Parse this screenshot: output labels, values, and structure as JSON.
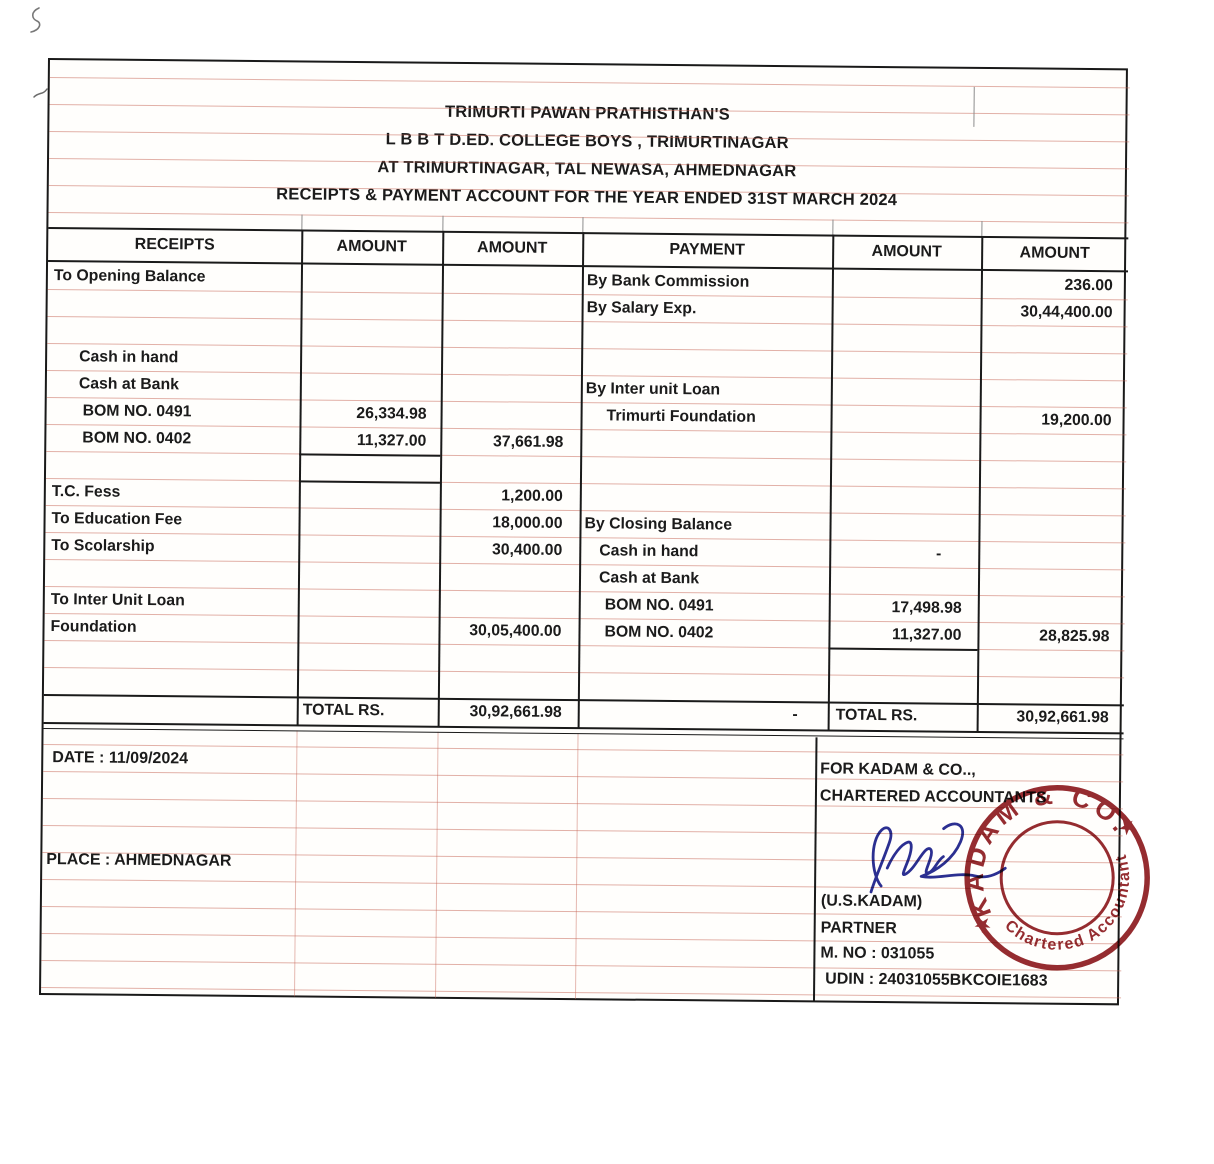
{
  "doc": {
    "title_lines": [
      "TRIMURTI PAWAN PRATHISTHAN'S",
      "L B B T D.ED. COLLEGE BOYS , TRIMURTINAGAR",
      "AT TRIMURTINAGAR, TAL NEWASA, AHMEDNAGAR",
      "RECEIPTS & PAYMENT ACCOUNT FOR THE YEAR ENDED 31ST MARCH 2024"
    ]
  },
  "table": {
    "column_headers": [
      "RECEIPTS",
      "AMOUNT",
      "AMOUNT",
      "PAYMENT",
      "AMOUNT",
      "AMOUNT"
    ],
    "rows": [
      {
        "r": "To Opening Balance",
        "ri": 0,
        "ra1": "",
        "ra2": "",
        "p": "By Bank Commission",
        "pi": 0,
        "pa1": "",
        "pa2": "236.00"
      },
      {
        "r": "",
        "ri": 0,
        "ra1": "",
        "ra2": "",
        "p": "By Salary Exp.",
        "pi": 0,
        "pa1": "",
        "pa2": "30,44,400.00"
      },
      {
        "r": "",
        "ri": 0,
        "ra1": "",
        "ra2": "",
        "p": "",
        "pi": 0,
        "pa1": "",
        "pa2": ""
      },
      {
        "r": "Cash in hand",
        "ri": 1,
        "ra1": "",
        "ra2": "",
        "p": "",
        "pi": 0,
        "pa1": "",
        "pa2": ""
      },
      {
        "r": "Cash at Bank",
        "ri": 1,
        "ra1": "",
        "ra2": "",
        "p": "By Inter unit Loan",
        "pi": 0,
        "pa1": "",
        "pa2": ""
      },
      {
        "r": "BOM NO. 0491",
        "ri": 2,
        "ra1": "26,334.98",
        "ra2": "",
        "p": "Trimurti Foundation",
        "pi": 2,
        "pa1": "",
        "pa2": "19,200.00"
      },
      {
        "r": "BOM NO. 0402",
        "ri": 2,
        "ra1": "11,327.00",
        "ra2": "37,661.98",
        "p": "",
        "pi": 0,
        "pa1": "",
        "pa2": "",
        "box_r": true
      },
      {
        "r": "",
        "ri": 0,
        "ra1": "",
        "ra2": "",
        "p": "",
        "pi": 0,
        "pa1": "",
        "pa2": "",
        "box_r": true
      },
      {
        "r": "T.C. Fess",
        "ri": 0,
        "ra1": "",
        "ra2": "1,200.00",
        "p": "",
        "pi": 0,
        "pa1": "",
        "pa2": ""
      },
      {
        "r": "To Education Fee",
        "ri": 0,
        "ra1": "",
        "ra2": "18,000.00",
        "p": "By Closing Balance",
        "pi": 0,
        "pa1": "",
        "pa2": ""
      },
      {
        "r": "To Scolarship",
        "ri": 0,
        "ra1": "",
        "ra2": "30,400.00",
        "p": "Cash in hand",
        "pi": 1,
        "pa1": "-",
        "pa2": ""
      },
      {
        "r": "",
        "ri": 0,
        "ra1": "",
        "ra2": "",
        "p": "Cash at Bank",
        "pi": 1,
        "pa1": "",
        "pa2": ""
      },
      {
        "r": "To Inter Unit Loan",
        "ri": 0,
        "ra1": "",
        "ra2": "",
        "p": "BOM NO. 0491",
        "pi": 2,
        "pa1": "17,498.98",
        "pa2": ""
      },
      {
        "r": "Foundation",
        "ri": 0,
        "ra1": "",
        "ra2": "30,05,400.00",
        "p": "BOM NO. 0402",
        "pi": 2,
        "pa1": "11,327.00",
        "pa2": "28,825.98",
        "box_p": true
      },
      {
        "r": "",
        "ri": 0,
        "ra1": "",
        "ra2": "",
        "p": "",
        "pi": 0,
        "pa1": "",
        "pa2": ""
      },
      {
        "r": "",
        "ri": 0,
        "ra1": "",
        "ra2": "",
        "p": "",
        "pi": 0,
        "pa1": "",
        "pa2": ""
      }
    ],
    "totals": {
      "receipts_label": "TOTAL RS.",
      "receipts_amount": "30,92,661.98",
      "payment_dash": "-",
      "payments_label": "TOTAL RS.",
      "payments_amount": "30,92,661.98"
    }
  },
  "footer": {
    "date": "DATE : 11/09/2024",
    "place": "PLACE : AHMEDNAGAR",
    "firm": "FOR KADAM & CO..,",
    "firm_title": "CHARTERED ACCOUNTANTS",
    "signatory": "(U.S.KADAM)",
    "designation": "PARTNER",
    "membership": "M. NO :  031055",
    "udin": "UDIN : 24031055BKCOIE1683"
  },
  "stamp": {
    "arc_top": "KADAM & CO.",
    "arc_bottom": "Chartered Accountant",
    "star": "★",
    "color": "#8c1a1e"
  },
  "colors": {
    "ink": "#1b1b1b",
    "ruled_line_pink": "#c66454",
    "signature_blue": "#2b2f93",
    "stamp_red": "#8c1a1e"
  }
}
